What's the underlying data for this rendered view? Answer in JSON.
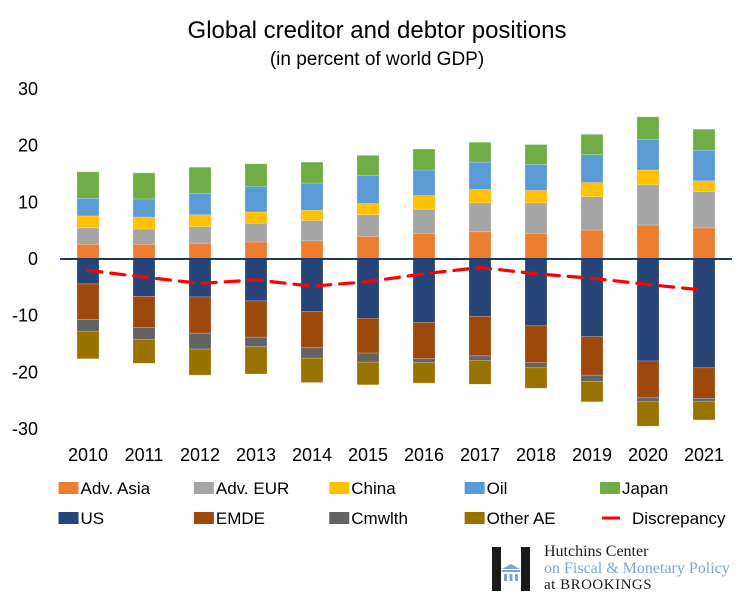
{
  "chart_data": {
    "type": "bar",
    "stacked": true,
    "title": "Global creditor and debtor positions",
    "subtitle": "(in percent of world GDP)",
    "xlabel": "",
    "ylabel": "",
    "ylim": [
      -30,
      30
    ],
    "yticks": [
      30,
      20,
      10,
      0,
      -10,
      -20,
      -30
    ],
    "ytick_labels": [
      "30",
      "20",
      "10",
      "0",
      "-10",
      "-20",
      "-30"
    ],
    "grid": false,
    "legend_position": "bottom",
    "categories": [
      "2010",
      "2011",
      "2012",
      "2013",
      "2014",
      "2015",
      "2016",
      "2017",
      "2018",
      "2019",
      "2020",
      "2021"
    ],
    "series": [
      {
        "name": "Adv. Asia",
        "kind": "bar",
        "color": "#ED7D31",
        "values": [
          2.6,
          2.6,
          2.8,
          3.0,
          3.2,
          4.0,
          4.5,
          4.8,
          4.5,
          5.1,
          6.0,
          5.5
        ]
      },
      {
        "name": "Adv. EUR",
        "kind": "bar",
        "color": "#A5A5A5",
        "values": [
          2.9,
          2.7,
          2.9,
          3.3,
          3.6,
          3.8,
          4.3,
          5.1,
          5.4,
          5.9,
          7.1,
          6.4
        ]
      },
      {
        "name": "China",
        "kind": "bar",
        "color": "#FFC000",
        "values": [
          2.1,
          2.1,
          2.1,
          2.0,
          1.8,
          2.0,
          2.4,
          2.4,
          2.2,
          2.5,
          2.6,
          1.9
        ]
      },
      {
        "name": "Oil",
        "kind": "bar",
        "color": "#5B9BD5",
        "values": [
          3.1,
          3.2,
          3.8,
          4.5,
          4.8,
          4.9,
          4.5,
          4.8,
          4.6,
          4.9,
          5.4,
          5.4
        ]
      },
      {
        "name": "Japan",
        "kind": "bar",
        "color": "#70AD47",
        "values": [
          4.7,
          4.6,
          4.6,
          4.0,
          3.7,
          3.6,
          3.7,
          3.5,
          3.5,
          3.6,
          4.0,
          3.7
        ]
      },
      {
        "name": "US",
        "kind": "bar",
        "color": "#264478",
        "values": [
          -4.4,
          -6.6,
          -6.7,
          -7.4,
          -9.3,
          -10.5,
          -11.2,
          -10.1,
          -11.8,
          -13.7,
          -18.0,
          -19.2
        ]
      },
      {
        "name": "EMDE",
        "kind": "bar",
        "color": "#9E480E",
        "values": [
          -6.3,
          -5.5,
          -6.4,
          -6.4,
          -6.3,
          -6.1,
          -6.4,
          -7.0,
          -6.5,
          -6.8,
          -6.5,
          -5.4
        ]
      },
      {
        "name": "Cmwlth",
        "kind": "bar",
        "color": "#636363",
        "values": [
          -2.1,
          -2.1,
          -2.8,
          -1.7,
          -1.9,
          -1.6,
          -0.7,
          -0.8,
          -0.9,
          -1.1,
          -0.7,
          -0.5
        ]
      },
      {
        "name": "Other AE",
        "kind": "bar",
        "color": "#997300",
        "values": [
          -4.8,
          -4.2,
          -4.6,
          -4.8,
          -4.3,
          -4.0,
          -3.6,
          -4.2,
          -3.6,
          -3.6,
          -4.3,
          -3.3
        ]
      },
      {
        "name": "Discrepancy",
        "kind": "line",
        "style": "dashed",
        "color": "#FF0000",
        "values": [
          -2.0,
          -3.2,
          -4.3,
          -3.7,
          -4.8,
          -4.0,
          -2.6,
          -1.5,
          -2.6,
          -3.4,
          -4.5,
          -5.5
        ]
      }
    ],
    "zero_line_color": "#1F3864"
  },
  "logo": {
    "line1": "Hutchins Center",
    "line2": "on Fiscal & Monetary Policy",
    "line3": "at BROOKINGS"
  }
}
